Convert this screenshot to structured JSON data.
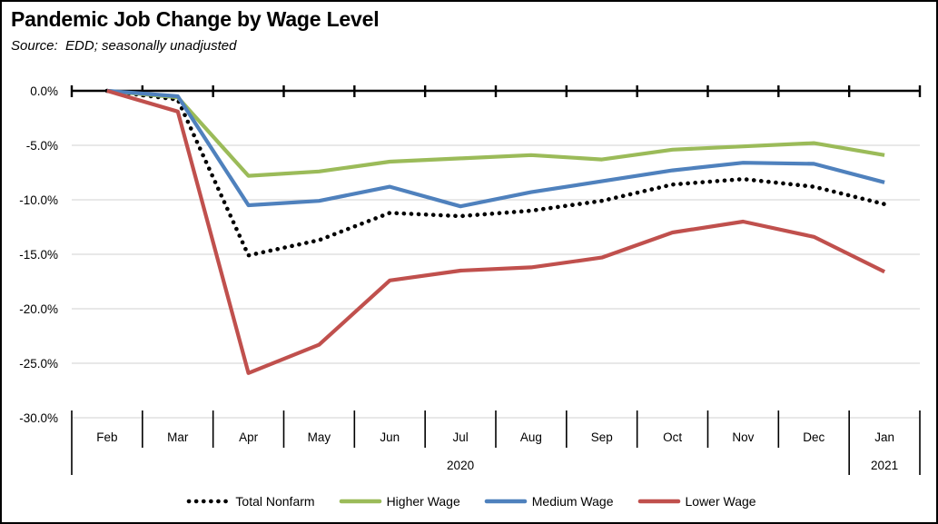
{
  "title": "Pandemic Job Change by Wage Level",
  "source": "Source:  EDD; seasonally unadjusted",
  "chart_data": {
    "type": "line",
    "categories": [
      "Feb",
      "Mar",
      "Apr",
      "May",
      "Jun",
      "Jul",
      "Aug",
      "Sep",
      "Oct",
      "Nov",
      "Dec",
      "Jan"
    ],
    "year_groups": [
      {
        "label": "2020",
        "start": 0,
        "end": 10
      },
      {
        "label": "2021",
        "start": 11,
        "end": 11
      }
    ],
    "ytick_labels": [
      "0.0%",
      "-5.0%",
      "-10.0%",
      "-15.0%",
      "-20.0%",
      "-25.0%",
      "-30.0%"
    ],
    "ylim": [
      -30,
      0
    ],
    "ytick_step": 5,
    "grid": true,
    "legend_position": "bottom",
    "axis_color": "#000000",
    "gridline_color": "#d9d9d9",
    "series": [
      {
        "name": "Total Nonfarm",
        "color": "#000000",
        "style": "dotted",
        "values": [
          0.0,
          -0.8,
          -15.1,
          -13.7,
          -11.2,
          -11.5,
          -11.0,
          -10.1,
          -8.6,
          -8.1,
          -8.8,
          -10.4
        ]
      },
      {
        "name": "Higher Wage",
        "color": "#9bbb59",
        "style": "solid",
        "values": [
          0.0,
          -0.6,
          -7.8,
          -7.4,
          -6.5,
          -6.2,
          -5.9,
          -6.3,
          -5.4,
          -5.1,
          -4.8,
          -5.9
        ]
      },
      {
        "name": "Medium Wage",
        "color": "#4f81bd",
        "style": "solid",
        "values": [
          0.0,
          -0.5,
          -10.5,
          -10.1,
          -8.8,
          -10.6,
          -9.3,
          -8.3,
          -7.3,
          -6.6,
          -6.7,
          -8.4
        ]
      },
      {
        "name": "Lower Wage",
        "color": "#c0504d",
        "style": "solid",
        "values": [
          0.0,
          -1.9,
          -25.9,
          -23.3,
          -17.4,
          -16.5,
          -16.2,
          -15.3,
          -13.0,
          -12.0,
          -13.4,
          -16.6
        ]
      }
    ]
  }
}
